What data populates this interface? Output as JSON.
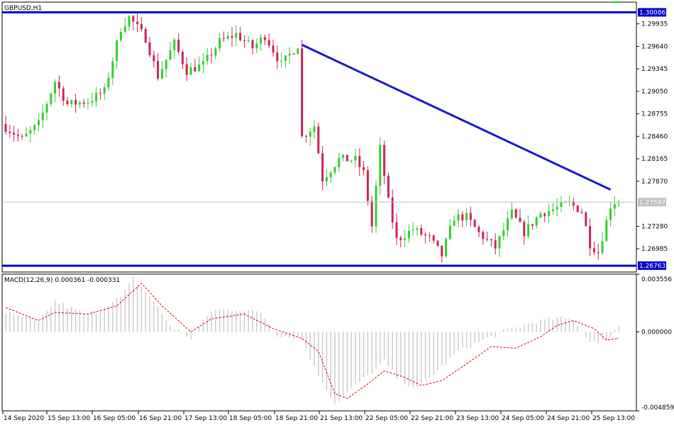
{
  "chart_data": [
    {
      "type": "candlestick",
      "symbol_label": "GBPUSD,H1",
      "y_ticks": [
        "1.29935",
        "1.29640",
        "1.29345",
        "1.29050",
        "1.28755",
        "1.28460",
        "1.28165",
        "1.27870",
        "1.27280",
        "1.26985"
      ],
      "y_tick_values": [
        1.29935,
        1.2964,
        1.29345,
        1.2905,
        1.28755,
        1.2846,
        1.28165,
        1.2787,
        1.2728,
        1.26985
      ],
      "ylim": [
        1.2668,
        1.3022
      ],
      "x_ticks": [
        "14 Sep 2020",
        "15 Sep 13:00",
        "16 Sep 05:00",
        "16 Sep 21:00",
        "17 Sep 13:00",
        "18 Sep 05:00",
        "18 Sep 21:00",
        "21 Sep 13:00",
        "22 Sep 05:00",
        "22 Sep 21:00",
        "23 Sep 13:00",
        "24 Sep 05:00",
        "24 Sep 21:00",
        "25 Sep 13:00"
      ],
      "levels": [
        {
          "label": "1.30086",
          "value": 1.30086,
          "color": "#0000cc",
          "kind": "horizontal-line"
        },
        {
          "label": "1.26763",
          "value": 1.26763,
          "color": "#0000cc",
          "kind": "horizontal-line"
        },
        {
          "label": "1.27597",
          "value": 1.27597,
          "color": "#c0c0c0",
          "kind": "current-price"
        }
      ],
      "trendline": {
        "color": "#1a1acc",
        "start": {
          "bar": 72,
          "price": 1.2966
        },
        "end": {
          "bar": 147,
          "price": 1.2776
        }
      },
      "bull_color": "#33cc33",
      "bear_color": "#cc2255",
      "price_path": [
        [
          0,
          1.2862
        ],
        [
          5,
          1.2842
        ],
        [
          9,
          1.2862
        ],
        [
          13,
          1.2918
        ],
        [
          16,
          1.2888
        ],
        [
          21,
          1.2892
        ],
        [
          25,
          1.2905
        ],
        [
          29,
          1.2988
        ],
        [
          31,
          1.3002
        ],
        [
          35,
          1.2975
        ],
        [
          38,
          1.2925
        ],
        [
          42,
          1.2968
        ],
        [
          45,
          1.2932
        ],
        [
          49,
          1.294
        ],
        [
          53,
          1.297
        ],
        [
          57,
          1.298
        ],
        [
          61,
          1.2962
        ],
        [
          64,
          1.2978
        ],
        [
          68,
          1.294
        ],
        [
          72,
          1.2966
        ],
        [
          73,
          1.2845
        ],
        [
          76,
          1.286
        ],
        [
          78,
          1.279
        ],
        [
          82,
          1.2816
        ],
        [
          86,
          1.2815
        ],
        [
          88,
          1.2798
        ],
        [
          90,
          1.2728
        ],
        [
          92,
          1.283
        ],
        [
          94,
          1.276
        ],
        [
          96,
          1.271
        ],
        [
          100,
          1.2724
        ],
        [
          104,
          1.2712
        ],
        [
          107,
          1.269
        ],
        [
          110,
          1.274
        ],
        [
          113,
          1.274
        ],
        [
          116,
          1.2719
        ],
        [
          120,
          1.27
        ],
        [
          124,
          1.2745
        ],
        [
          127,
          1.272
        ],
        [
          131,
          1.2745
        ],
        [
          134,
          1.275
        ],
        [
          138,
          1.2758
        ],
        [
          141,
          1.2748
        ],
        [
          143,
          1.2705
        ],
        [
          145,
          1.2694
        ],
        [
          148,
          1.2755
        ],
        [
          149,
          1.276
        ]
      ]
    },
    {
      "type": "bar",
      "indicator_label": "MACD(12,26,9) 0.000361 -0.000331",
      "y_ticks": [
        "0.003556",
        "0.000000",
        "-0.004859"
      ],
      "y_tick_values": [
        0.003556,
        0.0,
        -0.004859
      ],
      "ylim": [
        -0.004859,
        0.003556
      ],
      "histogram_color": "#c8c8c8",
      "signal_color": "#e00000",
      "histogram_path": [
        [
          0,
          0.0012
        ],
        [
          8,
          0.0006
        ],
        [
          12,
          0.0019
        ],
        [
          20,
          0.001
        ],
        [
          28,
          0.0021
        ],
        [
          31,
          0.0033
        ],
        [
          35,
          0.0022
        ],
        [
          40,
          0.0004
        ],
        [
          45,
          -0.0004
        ],
        [
          50,
          0.0013
        ],
        [
          55,
          0.0014
        ],
        [
          62,
          0.0012
        ],
        [
          66,
          -0.0002
        ],
        [
          72,
          -0.0004
        ],
        [
          75,
          -0.0022
        ],
        [
          80,
          -0.0044
        ],
        [
          83,
          -0.0037
        ],
        [
          88,
          -0.0027
        ],
        [
          92,
          -0.0018
        ],
        [
          95,
          -0.0028
        ],
        [
          100,
          -0.0035
        ],
        [
          104,
          -0.0026
        ],
        [
          110,
          -0.0012
        ],
        [
          115,
          -0.0006
        ],
        [
          122,
          0.0001
        ],
        [
          127,
          0.0005
        ],
        [
          133,
          0.0008
        ],
        [
          138,
          0.0008
        ],
        [
          141,
          -0.0003
        ],
        [
          144,
          -0.0008
        ],
        [
          147,
          -0.0002
        ],
        [
          149,
          0.0004
        ]
      ],
      "signal_path": [
        [
          0,
          0.0015
        ],
        [
          8,
          0.0007
        ],
        [
          12,
          0.0012
        ],
        [
          20,
          0.0011
        ],
        [
          27,
          0.0016
        ],
        [
          33,
          0.003
        ],
        [
          38,
          0.0016
        ],
        [
          45,
          0.0
        ],
        [
          50,
          0.0008
        ],
        [
          58,
          0.0011
        ],
        [
          65,
          0.0002
        ],
        [
          72,
          -0.0004
        ],
        [
          76,
          -0.0012
        ],
        [
          80,
          -0.0038
        ],
        [
          83,
          -0.0041
        ],
        [
          88,
          -0.0032
        ],
        [
          92,
          -0.0024
        ],
        [
          97,
          -0.0028
        ],
        [
          101,
          -0.0033
        ],
        [
          106,
          -0.003
        ],
        [
          113,
          -0.0018
        ],
        [
          118,
          -0.0009
        ],
        [
          124,
          -0.001
        ],
        [
          130,
          -0.0003
        ],
        [
          134,
          0.0004
        ],
        [
          138,
          0.0007
        ],
        [
          143,
          0.0002
        ],
        [
          146,
          -0.0005
        ],
        [
          149,
          -0.0004
        ]
      ]
    }
  ]
}
